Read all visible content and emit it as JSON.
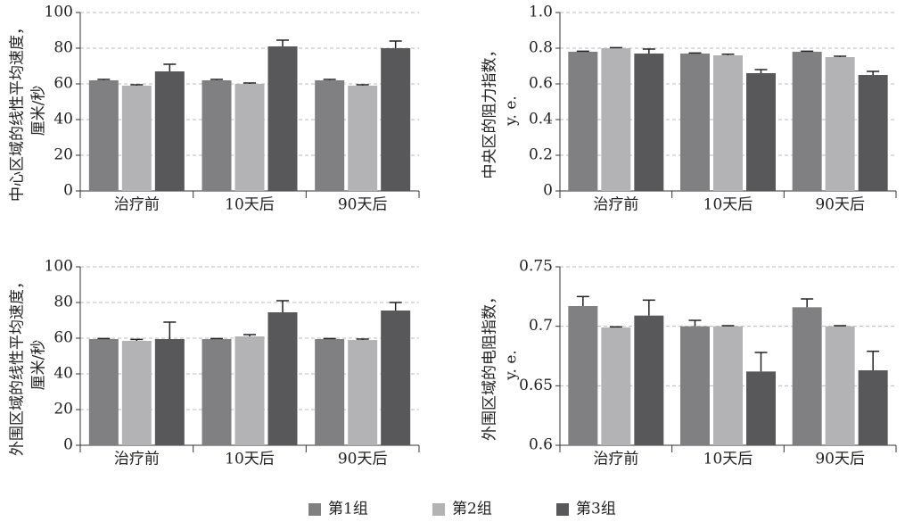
{
  "legend": [
    {
      "name": "第1组",
      "color": "#808083"
    },
    {
      "name": "第2组",
      "color": "#b3b3b5"
    },
    {
      "name": "第3组",
      "color": "#58585b"
    }
  ],
  "chart_data": [
    {
      "type": "bar",
      "ylabel": [
        "中心区域的线性平均速度，",
        "厘米/秒"
      ],
      "categories": [
        "治疗前",
        "10天后",
        "90天后"
      ],
      "ylim": [
        0,
        100
      ],
      "yticks": [
        0,
        20,
        40,
        60,
        80,
        100
      ],
      "grid": true,
      "series": [
        {
          "values": [
            62,
            62,
            62
          ],
          "errors": [
            0.5,
            0.5,
            0.5
          ]
        },
        {
          "values": [
            59,
            60,
            59
          ],
          "errors": [
            0.5,
            0.5,
            0.5
          ]
        },
        {
          "values": [
            67,
            81,
            80
          ],
          "errors": [
            4,
            3.5,
            4
          ]
        }
      ]
    },
    {
      "type": "bar",
      "ylabel": [
        "中央区的阻力指数，",
        "y. e."
      ],
      "categories": [
        "治疗前",
        "10天后",
        "90天后"
      ],
      "ylim": [
        0,
        1
      ],
      "yticks": [
        0,
        0.2,
        0.4,
        0.6,
        0.8,
        {
          "value": 1,
          "label": "1.0"
        }
      ],
      "grid": true,
      "series": [
        {
          "values": [
            0.78,
            0.77,
            0.78
          ],
          "errors": [
            0.003,
            0.003,
            0.003
          ]
        },
        {
          "values": [
            0.8,
            0.76,
            0.75
          ],
          "errors": [
            0.003,
            0.006,
            0.005
          ]
        },
        {
          "values": [
            0.77,
            0.66,
            0.65
          ],
          "errors": [
            0.025,
            0.02,
            0.02
          ]
        }
      ]
    },
    {
      "type": "bar",
      "ylabel": [
        "外围区域的线性平均速度，",
        "厘米/秒"
      ],
      "categories": [
        "治疗前",
        "10天后",
        "90天后"
      ],
      "ylim": [
        0,
        100
      ],
      "yticks": [
        0,
        20,
        40,
        60,
        80,
        100
      ],
      "grid": true,
      "series": [
        {
          "values": [
            59.5,
            59.5,
            59.5
          ],
          "errors": [
            0.3,
            0.3,
            0.3
          ]
        },
        {
          "values": [
            58.5,
            61,
            59
          ],
          "errors": [
            0.8,
            1,
            0.5
          ]
        },
        {
          "values": [
            59.5,
            74.5,
            75.5
          ],
          "errors": [
            9.5,
            6.5,
            4.5
          ]
        }
      ]
    },
    {
      "type": "bar",
      "ylabel": [
        "外围区域的电阻指数，",
        "y. e."
      ],
      "categories": [
        "治疗前",
        "10天后",
        "90天后"
      ],
      "ylim": [
        0.6,
        0.75
      ],
      "yticks": [
        0.6,
        0.65,
        0.7,
        0.75
      ],
      "grid": true,
      "series": [
        {
          "values": [
            0.717,
            0.7,
            0.716
          ],
          "errors": [
            0.008,
            0.005,
            0.007
          ]
        },
        {
          "values": [
            0.699,
            0.7,
            0.7
          ],
          "errors": [
            0.0005,
            0.0005,
            0.0005
          ]
        },
        {
          "values": [
            0.709,
            0.662,
            0.663
          ],
          "errors": [
            0.013,
            0.016,
            0.016
          ]
        }
      ]
    }
  ]
}
